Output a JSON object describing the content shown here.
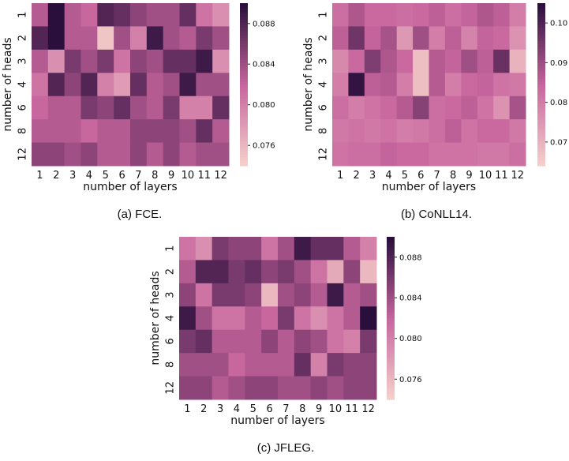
{
  "colors": {
    "low": "#f6d3cb",
    "mid": "#c8669e",
    "high": "#2a0f3c"
  },
  "chart_data": [
    {
      "type": "heatmap",
      "caption": "(a) FCE.",
      "xlabel": "number of layers",
      "ylabel": "number of heads",
      "x_categories": [
        "1",
        "2",
        "3",
        "4",
        "5",
        "6",
        "7",
        "8",
        "9",
        "10",
        "11",
        "12"
      ],
      "y_categories": [
        "1",
        "2",
        "3",
        "4",
        "6",
        "8",
        "12"
      ],
      "color_range": [
        0.074,
        0.09
      ],
      "colorbar_ticks": [
        "0.076",
        "0.080",
        "0.084",
        "0.088"
      ],
      "values": [
        [
          0.083,
          0.09,
          0.083,
          0.082,
          0.088,
          0.087,
          0.085,
          0.084,
          0.084,
          0.087,
          0.081,
          0.079
        ],
        [
          0.088,
          0.09,
          0.083,
          0.083,
          0.075,
          0.084,
          0.08,
          0.089,
          0.084,
          0.083,
          0.086,
          0.084
        ],
        [
          0.083,
          0.079,
          0.086,
          0.084,
          0.086,
          0.081,
          0.085,
          0.084,
          0.087,
          0.087,
          0.089,
          0.079
        ],
        [
          0.081,
          0.088,
          0.085,
          0.088,
          0.08,
          0.078,
          0.087,
          0.083,
          0.084,
          0.089,
          0.084,
          0.084
        ],
        [
          0.082,
          0.083,
          0.083,
          0.086,
          0.085,
          0.087,
          0.084,
          0.083,
          0.086,
          0.08,
          0.08,
          0.087
        ],
        [
          0.083,
          0.083,
          0.083,
          0.082,
          0.083,
          0.083,
          0.085,
          0.085,
          0.085,
          0.084,
          0.087,
          0.083
        ],
        [
          0.085,
          0.085,
          0.084,
          0.085,
          0.083,
          0.083,
          0.085,
          0.083,
          0.085,
          0.083,
          0.084,
          0.084
        ]
      ]
    },
    {
      "type": "heatmap",
      "caption": "(b) CoNLL14.",
      "xlabel": "number of layers",
      "ylabel": "number of heads",
      "x_categories": [
        "1",
        "2",
        "3",
        "4",
        "5",
        "6",
        "7",
        "8",
        "9",
        "10",
        "11",
        "12"
      ],
      "y_categories": [
        "1",
        "2",
        "3",
        "4",
        "6",
        "8",
        "12"
      ],
      "color_range": [
        0.064,
        0.105
      ],
      "colorbar_ticks": [
        "0.07",
        "0.08",
        "0.09",
        "0.10"
      ],
      "values": [
        [
          0.083,
          0.088,
          0.084,
          0.084,
          0.083,
          0.084,
          0.086,
          0.083,
          0.085,
          0.088,
          0.086,
          0.08
        ],
        [
          0.086,
          0.096,
          0.085,
          0.089,
          0.075,
          0.09,
          0.08,
          0.086,
          0.079,
          0.085,
          0.084,
          0.076
        ],
        [
          0.078,
          0.084,
          0.094,
          0.088,
          0.084,
          0.068,
          0.087,
          0.085,
          0.09,
          0.086,
          0.097,
          0.07
        ],
        [
          0.08,
          0.104,
          0.086,
          0.087,
          0.08,
          0.068,
          0.087,
          0.08,
          0.084,
          0.085,
          0.082,
          0.081
        ],
        [
          0.083,
          0.08,
          0.082,
          0.084,
          0.087,
          0.093,
          0.083,
          0.084,
          0.086,
          0.082,
          0.076,
          0.089
        ],
        [
          0.081,
          0.082,
          0.081,
          0.082,
          0.08,
          0.081,
          0.083,
          0.086,
          0.082,
          0.084,
          0.084,
          0.081
        ],
        [
          0.082,
          0.083,
          0.083,
          0.085,
          0.084,
          0.084,
          0.082,
          0.082,
          0.082,
          0.081,
          0.081,
          0.083
        ]
      ]
    },
    {
      "type": "heatmap",
      "caption": "(c) JFLEG.",
      "xlabel": "number of layers",
      "ylabel": "number of heads",
      "x_categories": [
        "1",
        "2",
        "3",
        "4",
        "5",
        "6",
        "7",
        "8",
        "9",
        "10",
        "11",
        "12"
      ],
      "y_categories": [
        "1",
        "2",
        "3",
        "4",
        "6",
        "8",
        "12"
      ],
      "color_range": [
        0.074,
        0.09
      ],
      "colorbar_ticks": [
        "0.076",
        "0.080",
        "0.084",
        "0.088"
      ],
      "values": [
        [
          0.081,
          0.079,
          0.086,
          0.085,
          0.085,
          0.081,
          0.084,
          0.089,
          0.087,
          0.087,
          0.083,
          0.08
        ],
        [
          0.083,
          0.088,
          0.088,
          0.086,
          0.087,
          0.085,
          0.086,
          0.084,
          0.081,
          0.077,
          0.085,
          0.076
        ],
        [
          0.085,
          0.081,
          0.086,
          0.086,
          0.085,
          0.076,
          0.084,
          0.085,
          0.083,
          0.089,
          0.083,
          0.084
        ],
        [
          0.089,
          0.084,
          0.081,
          0.081,
          0.083,
          0.082,
          0.086,
          0.081,
          0.079,
          0.081,
          0.083,
          0.09
        ],
        [
          0.086,
          0.087,
          0.083,
          0.083,
          0.083,
          0.085,
          0.083,
          0.085,
          0.084,
          0.081,
          0.08,
          0.086
        ],
        [
          0.084,
          0.084,
          0.084,
          0.082,
          0.083,
          0.083,
          0.083,
          0.087,
          0.08,
          0.086,
          0.085,
          0.085
        ],
        [
          0.085,
          0.085,
          0.083,
          0.084,
          0.085,
          0.085,
          0.084,
          0.084,
          0.085,
          0.084,
          0.085,
          0.085
        ]
      ]
    }
  ]
}
